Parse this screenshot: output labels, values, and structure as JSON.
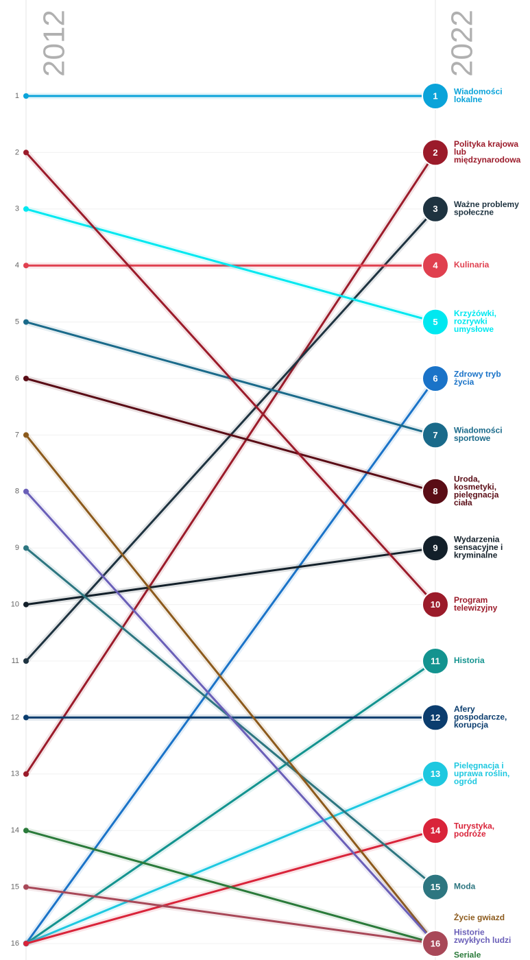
{
  "chart_data": {
    "type": "slope",
    "x": [
      "2012",
      "2022"
    ],
    "ylim": [
      1,
      16
    ],
    "yticks": [
      1,
      2,
      3,
      4,
      5,
      6,
      7,
      8,
      9,
      10,
      11,
      12,
      13,
      14,
      15,
      16
    ],
    "grid": true,
    "series": [
      {
        "name": "Wiadomości lokalne",
        "color": "#0aa3d9",
        "values": [
          1,
          1
        ]
      },
      {
        "name": "Polityka krajowa lub międzynarodowa",
        "color": "#9b1b2a",
        "values": [
          13,
          2
        ]
      },
      {
        "name": "Ważne problemy społeczne",
        "color": "#1e3340",
        "values": [
          11,
          3
        ]
      },
      {
        "name": "Kulinaria",
        "color": "#e0404f",
        "values": [
          4,
          4
        ]
      },
      {
        "name": "Krzyżówki, rozrywki umysłowe",
        "color": "#00e8f0",
        "values": [
          3,
          5
        ]
      },
      {
        "name": "Zdrowy tryb życia",
        "color": "#1a73c8",
        "values": [
          16,
          6
        ]
      },
      {
        "name": "Wiadomości sportowe",
        "color": "#1a6a8a",
        "values": [
          5,
          7
        ]
      },
      {
        "name": "Uroda, kosmetyki, pielęgnacja ciała",
        "color": "#5a0d16",
        "values": [
          6,
          8
        ]
      },
      {
        "name": "Wydarzenia sensacyjne i kryminalne",
        "color": "#13202a",
        "values": [
          10,
          9
        ]
      },
      {
        "name": "Program telewizyjny",
        "color": "#9b1b2a",
        "values": [
          2,
          10
        ]
      },
      {
        "name": "Historia",
        "color": "#13938f",
        "values": [
          16,
          11
        ]
      },
      {
        "name": "Afery gospodarcze, korupcja",
        "color": "#0b3d6e",
        "values": [
          12,
          12
        ]
      },
      {
        "name": "Pielęgnacja i uprawa roślin, ogród",
        "color": "#1ec8e0",
        "values": [
          16,
          13
        ]
      },
      {
        "name": "Turystyka, podróże",
        "color": "#d9243a",
        "values": [
          16,
          14
        ]
      },
      {
        "name": "Moda",
        "color": "#2d7680",
        "values": [
          9,
          15
        ]
      },
      {
        "name": "Życie gwiazd",
        "color": "#8c5a1c",
        "values": [
          7,
          16
        ]
      },
      {
        "name": "Historie zwykłych ludzi",
        "color": "#6a5fb8",
        "values": [
          8,
          16
        ]
      },
      {
        "name": "Seriale",
        "color": "#2a7a3a",
        "values": [
          14,
          16
        ]
      },
      {
        "color": "#a84858",
        "values": [
          15,
          16
        ]
      }
    ]
  }
}
